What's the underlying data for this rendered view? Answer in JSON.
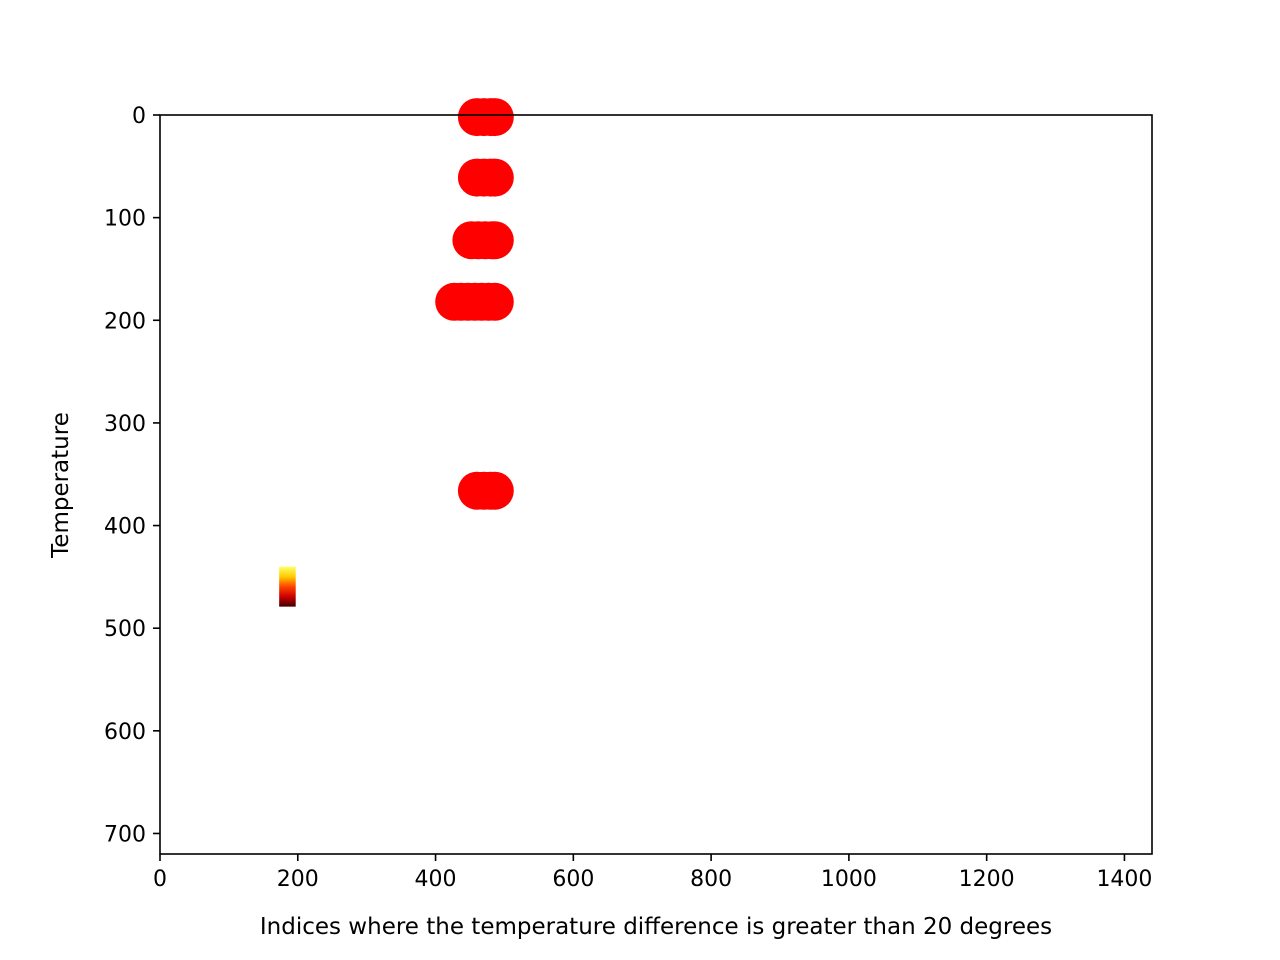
{
  "chart_data": {
    "type": "scatter",
    "title": "",
    "xlabel": "Indices where the temperature difference is greater than 20 degrees",
    "ylabel": "Temperature",
    "xlim": [
      0,
      1440
    ],
    "ylim": [
      720,
      0
    ],
    "y_inverted": true,
    "grid": false,
    "x_ticks": [
      0,
      200,
      400,
      600,
      800,
      1000,
      1200,
      1400
    ],
    "y_ticks": [
      0,
      100,
      200,
      300,
      400,
      500,
      600,
      700
    ],
    "marker_color": "#ff0000",
    "points": [
      {
        "x": 460,
        "y": 2
      },
      {
        "x": 470,
        "y": 2
      },
      {
        "x": 480,
        "y": 2
      },
      {
        "x": 486,
        "y": 2
      },
      {
        "x": 460,
        "y": 61
      },
      {
        "x": 470,
        "y": 61
      },
      {
        "x": 480,
        "y": 61
      },
      {
        "x": 486,
        "y": 61
      },
      {
        "x": 452,
        "y": 122
      },
      {
        "x": 462,
        "y": 122
      },
      {
        "x": 472,
        "y": 122
      },
      {
        "x": 482,
        "y": 122
      },
      {
        "x": 486,
        "y": 122
      },
      {
        "x": 427,
        "y": 182
      },
      {
        "x": 437,
        "y": 182
      },
      {
        "x": 447,
        "y": 182
      },
      {
        "x": 457,
        "y": 182
      },
      {
        "x": 467,
        "y": 182
      },
      {
        "x": 477,
        "y": 182
      },
      {
        "x": 486,
        "y": 182
      },
      {
        "x": 460,
        "y": 366
      },
      {
        "x": 470,
        "y": 366
      },
      {
        "x": 480,
        "y": 366
      },
      {
        "x": 486,
        "y": 366
      }
    ],
    "image_patch": {
      "x_range": [
        173,
        197
      ],
      "y_range": [
        440,
        479
      ],
      "colors": [
        "#ffff66",
        "#ffcc00",
        "#ff4400",
        "#cc0000",
        "#440000"
      ]
    }
  }
}
